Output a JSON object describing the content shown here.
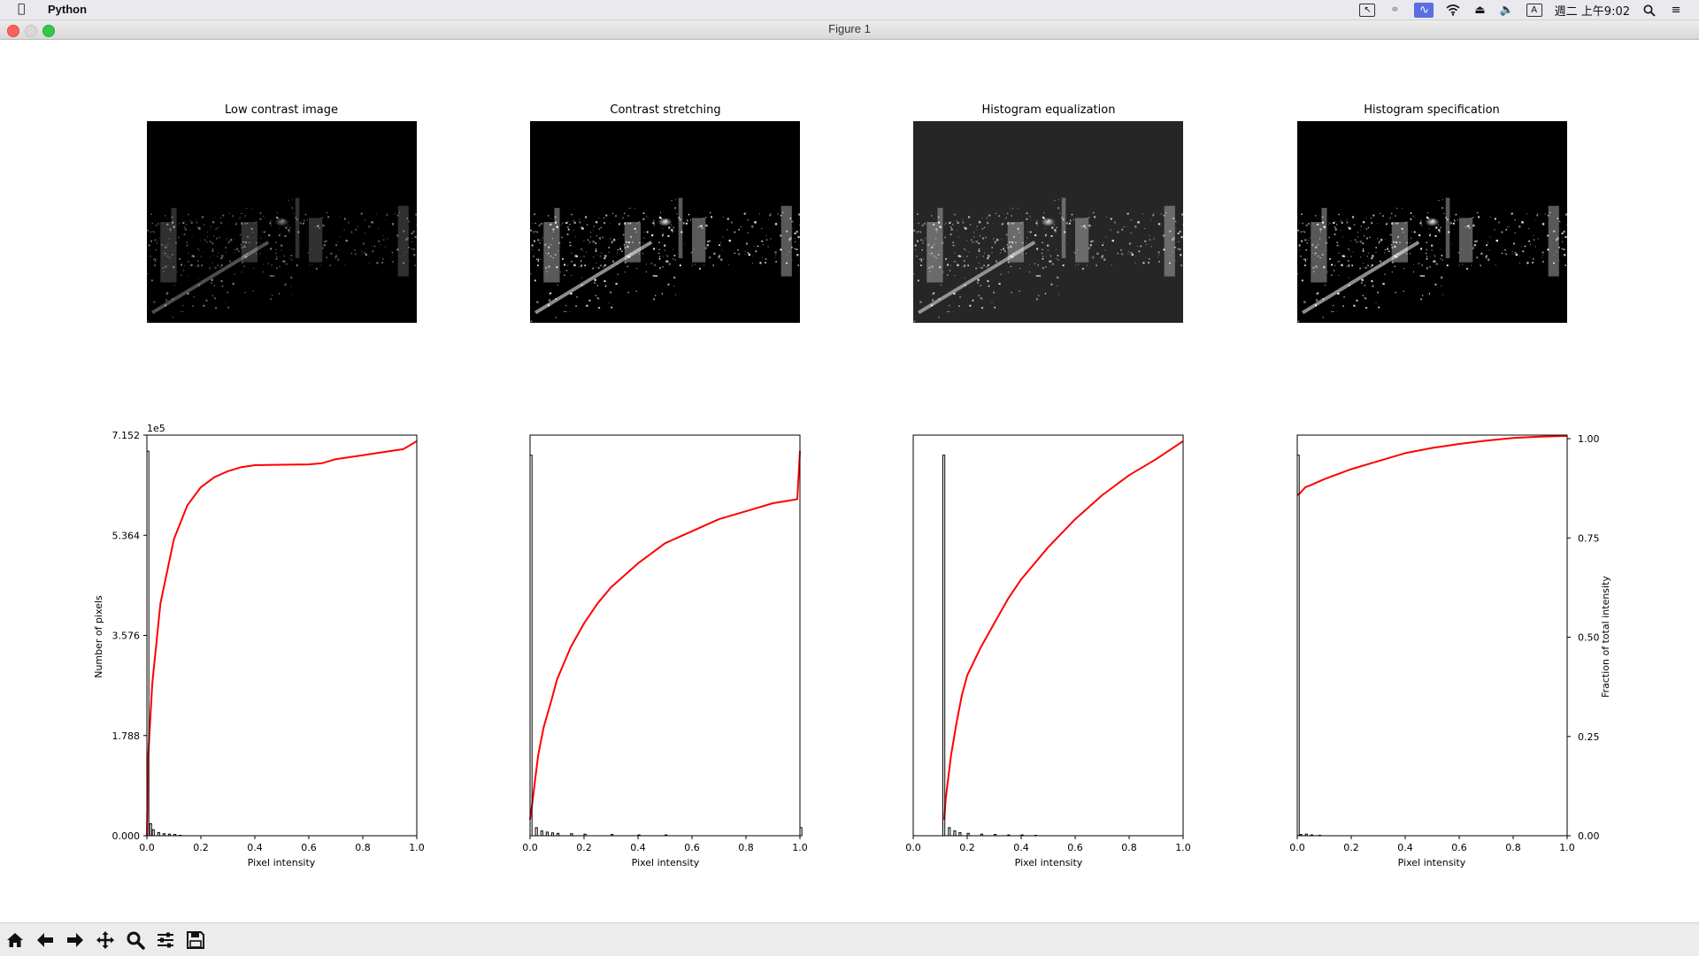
{
  "menubar": {
    "app_name": "Python",
    "datetime": "週二 上午9:02",
    "input_method": "A"
  },
  "window": {
    "title": "Figure 1"
  },
  "figure": {
    "image_titles": [
      "Low contrast image",
      "Contrast stretching",
      "Histogram equalization",
      "Histogram specification"
    ],
    "xlabel": "Pixel intensity",
    "ylabel_left": "Number of pixels",
    "ylabel_right": "Fraction of total intensity",
    "y_offset_text": "1e5"
  },
  "chart_data": [
    {
      "type": "line",
      "title": "",
      "xlabel": "Pixel intensity",
      "ylabel": "Number of pixels",
      "xlim": [
        0,
        1.0
      ],
      "ylim": [
        0,
        7.152
      ],
      "y_multiplier": "1e5",
      "x_ticks": [
        "0.0",
        "0.2",
        "0.4",
        "0.6",
        "0.8",
        "1.0"
      ],
      "y_ticks": [
        "0.000",
        "1.788",
        "3.576",
        "5.364",
        "7.152"
      ],
      "series": [
        {
          "kind": "cdf",
          "color": "#ff0000",
          "x": [
            0.0,
            0.005,
            0.02,
            0.05,
            0.1,
            0.15,
            0.2,
            0.25,
            0.3,
            0.35,
            0.4,
            0.5,
            0.6,
            0.65,
            0.7,
            0.8,
            0.9,
            0.95,
            1.0
          ],
          "y": [
            0.0,
            0.2,
            0.38,
            0.58,
            0.74,
            0.825,
            0.87,
            0.895,
            0.91,
            0.92,
            0.925,
            0.926,
            0.927,
            0.93,
            0.94,
            0.95,
            0.96,
            0.965,
            0.985
          ]
        },
        {
          "kind": "hist",
          "color": "#000000",
          "x": [
            0.0,
            0.01,
            0.02,
            0.04,
            0.06,
            0.08,
            0.1,
            0.12
          ],
          "y": [
            0.96,
            0.03,
            0.015,
            0.008,
            0.005,
            0.004,
            0.003,
            0.001
          ]
        }
      ]
    },
    {
      "type": "line",
      "title": "",
      "xlabel": "Pixel intensity",
      "xlim": [
        0,
        1.0
      ],
      "x_ticks": [
        "0.0",
        "0.2",
        "0.4",
        "0.6",
        "0.8",
        "1.0"
      ],
      "series": [
        {
          "kind": "cdf",
          "color": "#ff0000",
          "x": [
            0.0,
            0.01,
            0.03,
            0.05,
            0.08,
            0.1,
            0.15,
            0.2,
            0.25,
            0.3,
            0.4,
            0.5,
            0.6,
            0.7,
            0.8,
            0.9,
            0.99,
            1.0
          ],
          "y": [
            0.04,
            0.09,
            0.2,
            0.27,
            0.34,
            0.39,
            0.47,
            0.53,
            0.58,
            0.62,
            0.68,
            0.73,
            0.76,
            0.79,
            0.81,
            0.83,
            0.84,
            0.96
          ]
        },
        {
          "kind": "hist",
          "color": "#000000",
          "x": [
            0.0,
            0.02,
            0.04,
            0.06,
            0.08,
            0.1,
            0.15,
            0.2,
            0.3,
            0.4,
            0.5,
            1.0
          ],
          "y": [
            0.95,
            0.02,
            0.012,
            0.009,
            0.007,
            0.006,
            0.005,
            0.004,
            0.003,
            0.002,
            0.002,
            0.02
          ]
        }
      ]
    },
    {
      "type": "line",
      "title": "",
      "xlabel": "Pixel intensity",
      "xlim": [
        0,
        1.0
      ],
      "x_ticks": [
        "0.0",
        "0.2",
        "0.4",
        "0.6",
        "0.8",
        "1.0"
      ],
      "series": [
        {
          "kind": "cdf",
          "color": "#ff0000",
          "x": [
            0.115,
            0.12,
            0.14,
            0.16,
            0.18,
            0.2,
            0.25,
            0.3,
            0.35,
            0.4,
            0.5,
            0.6,
            0.7,
            0.8,
            0.9,
            1.0
          ],
          "y": [
            0.04,
            0.09,
            0.2,
            0.28,
            0.35,
            0.4,
            0.47,
            0.53,
            0.59,
            0.64,
            0.72,
            0.79,
            0.85,
            0.9,
            0.94,
            0.985
          ]
        },
        {
          "kind": "hist",
          "color": "#000000",
          "x": [
            0.11,
            0.13,
            0.15,
            0.17,
            0.2,
            0.25,
            0.3,
            0.35,
            0.4,
            0.45
          ],
          "y": [
            0.95,
            0.02,
            0.012,
            0.008,
            0.006,
            0.004,
            0.003,
            0.002,
            0.002,
            0.001
          ]
        }
      ]
    },
    {
      "type": "line",
      "title": "",
      "xlabel": "Pixel intensity",
      "ylabel": "Fraction of total intensity",
      "xlim": [
        0,
        1.0
      ],
      "ylim": [
        0,
        1.0
      ],
      "x_ticks": [
        "0.0",
        "0.2",
        "0.4",
        "0.6",
        "0.8",
        "1.0"
      ],
      "y_ticks": [
        "0.00",
        "0.25",
        "0.50",
        "0.75",
        "1.00"
      ],
      "series": [
        {
          "kind": "cdf",
          "color": "#ff0000",
          "x": [
            0.0,
            0.01,
            0.03,
            0.05,
            0.1,
            0.2,
            0.3,
            0.4,
            0.5,
            0.6,
            0.7,
            0.8,
            0.9,
            1.0
          ],
          "y": [
            0.85,
            0.855,
            0.87,
            0.875,
            0.89,
            0.915,
            0.935,
            0.955,
            0.968,
            0.978,
            0.986,
            0.993,
            0.996,
            0.998
          ]
        },
        {
          "kind": "hist",
          "color": "#000000",
          "x": [
            0.0,
            0.01,
            0.03,
            0.05,
            0.08
          ],
          "y": [
            0.95,
            0.003,
            0.004,
            0.002,
            0.001
          ]
        }
      ]
    }
  ],
  "toolbar": {
    "buttons": [
      "home",
      "back",
      "forward",
      "pan",
      "zoom",
      "subplots",
      "save"
    ]
  }
}
